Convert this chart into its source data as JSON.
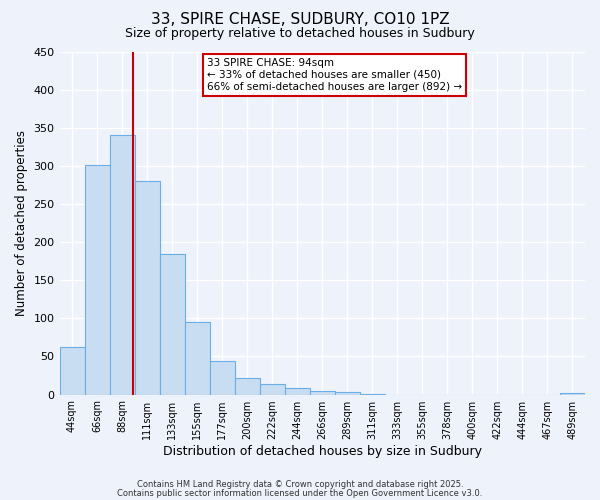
{
  "title": "33, SPIRE CHASE, SUDBURY, CO10 1PZ",
  "subtitle": "Size of property relative to detached houses in Sudbury",
  "xlabel": "Distribution of detached houses by size in Sudbury",
  "ylabel": "Number of detached properties",
  "bar_labels": [
    "44sqm",
    "66sqm",
    "88sqm",
    "111sqm",
    "133sqm",
    "155sqm",
    "177sqm",
    "200sqm",
    "222sqm",
    "244sqm",
    "266sqm",
    "289sqm",
    "311sqm",
    "333sqm",
    "355sqm",
    "378sqm",
    "400sqm",
    "422sqm",
    "444sqm",
    "467sqm",
    "489sqm"
  ],
  "bar_values": [
    63,
    301,
    340,
    280,
    185,
    95,
    44,
    22,
    14,
    8,
    5,
    3,
    1,
    0,
    0,
    0,
    0,
    0,
    0,
    0,
    2
  ],
  "bar_color": "#c9ddf2",
  "bar_edge_color": "#6aaee8",
  "ylim": [
    0,
    450
  ],
  "yticks": [
    0,
    50,
    100,
    150,
    200,
    250,
    300,
    350,
    400,
    450
  ],
  "vline_color": "#cc0000",
  "annotation_title": "33 SPIRE CHASE: 94sqm",
  "annotation_line1": "← 33% of detached houses are smaller (450)",
  "annotation_line2": "66% of semi-detached houses are larger (892) →",
  "annotation_box_color": "#ffffff",
  "annotation_box_edge": "#cc0000",
  "bg_color": "#eef2fb",
  "grid_color": "#ffffff",
  "footer1": "Contains HM Land Registry data © Crown copyright and database right 2025.",
  "footer2": "Contains public sector information licensed under the Open Government Licence v3.0."
}
